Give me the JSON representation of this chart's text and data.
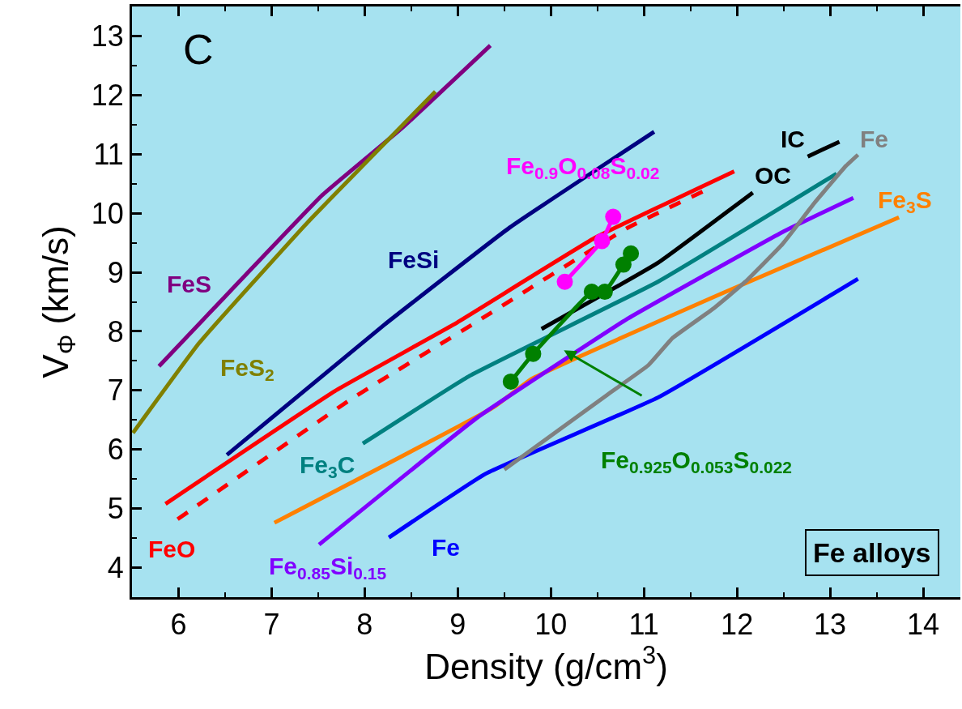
{
  "chart_data": {
    "type": "line",
    "xlabel": "Density (g/cm$^{3}$)",
    "ylabel": "V$_{Φ}$ (km/s)",
    "xlim": [
      5.5,
      14.4
    ],
    "xticks": [
      6,
      7,
      8,
      9,
      10,
      11,
      12,
      13,
      14
    ],
    "ylim": [
      3.5,
      13.5
    ],
    "yticks": [
      4,
      5,
      6,
      7,
      8,
      9,
      10,
      11,
      12,
      13
    ],
    "grid": false,
    "legend": false,
    "marker": "none",
    "line_style": "solid",
    "annotations": [
      "C",
      "Fe alloys"
    ],
    "series": [
      {
        "name": "FeS",
        "color": "#800080",
        "x": [
          5.79,
          6.38,
          7.54,
          8.4,
          9.35
        ],
        "values": [
          7.41,
          8.39,
          10.3,
          11.44,
          12.84
        ]
      },
      {
        "name": "FeS$_{2}$",
        "color": "#808000",
        "x": [
          5.51,
          6.22,
          7.39,
          8.76
        ],
        "values": [
          6.28,
          7.8,
          9.85,
          12.06
        ]
      },
      {
        "name": "FeSi",
        "color": "#000080",
        "x": [
          6.52,
          8.21,
          9.56,
          11.11
        ],
        "values": [
          5.91,
          8.11,
          9.76,
          11.38
        ]
      },
      {
        "name": "FeO",
        "color": "#ff0000",
        "x": [
          5.86,
          7.68,
          8.95,
          10.47,
          11.97
        ],
        "values": [
          5.08,
          6.99,
          8.11,
          9.58,
          10.71
        ]
      },
      {
        "color": "#ff0000",
        "line_style": "dashed",
        "x": [
          5.99,
          7.88,
          9.15,
          10.81,
          11.65
        ],
        "values": [
          4.82,
          6.88,
          8.11,
          9.74,
          10.38
        ]
      },
      {
        "name": "Fe$_{3}$C",
        "color": "#008080",
        "x": [
          7.98,
          9.13,
          11.15,
          13.07
        ],
        "values": [
          6.1,
          7.25,
          8.84,
          10.67
        ]
      },
      {
        "name": "Fe$_{3}$S",
        "color": "#ff8000",
        "x": [
          7.03,
          9.38,
          9.8,
          11.82,
          13.74
        ],
        "values": [
          4.76,
          6.71,
          7.2,
          8.63,
          9.93
        ]
      },
      {
        "name": "Fe$_{0.85}$Si$_{0.15}$",
        "color": "#8000ff",
        "x": [
          7.51,
          9.21,
          10.81,
          12.5,
          13.25
        ],
        "values": [
          4.39,
          6.54,
          8.2,
          9.69,
          10.26
        ]
      },
      {
        "name": "Fe",
        "color": "#0000ff",
        "x": [
          8.26,
          9.3,
          11.15,
          13.3
        ],
        "values": [
          4.51,
          5.59,
          6.88,
          8.89
        ]
      },
      {
        "name": "Fe",
        "color": "#808080",
        "x": [
          9.5,
          10.61,
          11.05,
          11.31,
          11.75,
          12.09,
          12.49,
          12.83,
          13.17,
          13.3
        ],
        "values": [
          5.66,
          6.93,
          7.43,
          7.89,
          8.39,
          8.84,
          9.48,
          10.17,
          10.8,
          10.99
        ]
      },
      {
        "name": "OC",
        "color": "#000000",
        "x": [
          9.9,
          11.15,
          12.17
        ],
        "values": [
          8.04,
          9.16,
          10.35
        ]
      },
      {
        "name": "IC",
        "color": "#000000",
        "x": [
          12.76,
          13.1
        ],
        "values": [
          10.96,
          11.21
        ]
      },
      {
        "name": "Fe$_{0.9}$O$_{0.08}$S$_{0.02}$",
        "color": "#ff00ff",
        "marker": "circle",
        "x": [
          10.15,
          10.55,
          10.67
        ],
        "values": [
          8.84,
          9.53,
          9.94
        ]
      },
      {
        "name": "Fe$_{0.925}$O$_{0.053}$S$_{0.022}$",
        "color": "#008000",
        "marker": "circle",
        "x": [
          9.57,
          9.81,
          10.44,
          10.58,
          10.78,
          10.86
        ],
        "values": [
          7.15,
          7.62,
          8.67,
          8.67,
          9.13,
          9.32
        ]
      }
    ]
  }
}
